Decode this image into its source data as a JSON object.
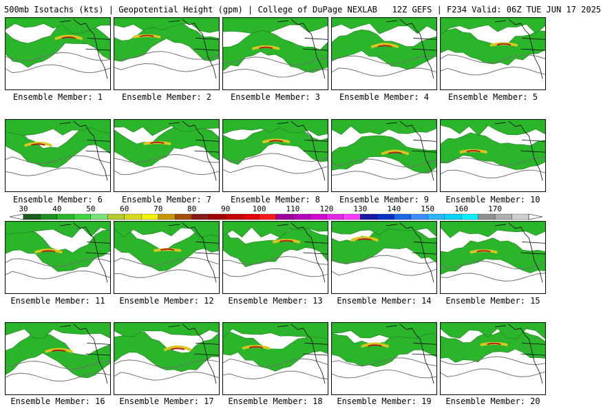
{
  "header": {
    "product": "500mb Isotachs (kts)",
    "field": "Geopotential Height (gpm)",
    "source": "College of DuPage NEXLAB",
    "run_info": "12Z GEFS | F234 Valid: 06Z TUE JUN 17 2025"
  },
  "panels": [
    {
      "label": "Ensemble Member: 1"
    },
    {
      "label": "Ensemble Member: 2"
    },
    {
      "label": "Ensemble Member: 3"
    },
    {
      "label": "Ensemble Member: 4"
    },
    {
      "label": "Ensemble Member: 5"
    },
    {
      "label": "Ensemble Member: 6"
    },
    {
      "label": "Ensemble Member: 7"
    },
    {
      "label": "Ensemble Member: 8"
    },
    {
      "label": "Ensemble Member: 9"
    },
    {
      "label": "Ensemble Member: 10"
    },
    {
      "label": "Ensemble Member: 11"
    },
    {
      "label": "Ensemble Member: 12"
    },
    {
      "label": "Ensemble Member: 13"
    },
    {
      "label": "Ensemble Member: 14"
    },
    {
      "label": "Ensemble Member: 15"
    },
    {
      "label": "Ensemble Member: 16"
    },
    {
      "label": "Ensemble Member: 17"
    },
    {
      "label": "Ensemble Member: 18"
    },
    {
      "label": "Ensemble Member: 19"
    },
    {
      "label": "Ensemble Member: 20"
    }
  ],
  "colorbar": {
    "labels": [
      "30",
      "40",
      "50",
      "60",
      "70",
      "80",
      "90",
      "100",
      "110",
      "120",
      "130",
      "140",
      "150",
      "160",
      "170"
    ],
    "colors": [
      "#1a5e1a",
      "#1f8f1f",
      "#2ab52a",
      "#3cd43c",
      "#7ae07a",
      "#b4c832",
      "#d8d81e",
      "#f0f000",
      "#c89600",
      "#a05000",
      "#8b1a1a",
      "#a00000",
      "#c80000",
      "#e00000",
      "#ff1a1a",
      "#9b009b",
      "#b400b4",
      "#d000d0",
      "#e628e6",
      "#ff3cff",
      "#1a1aa0",
      "#0032c8",
      "#1e64e6",
      "#3c8cff",
      "#28b4ff",
      "#00d2ff",
      "#00f0ff",
      "#909090",
      "#b0b0b0",
      "#d0d0d0"
    ]
  }
}
